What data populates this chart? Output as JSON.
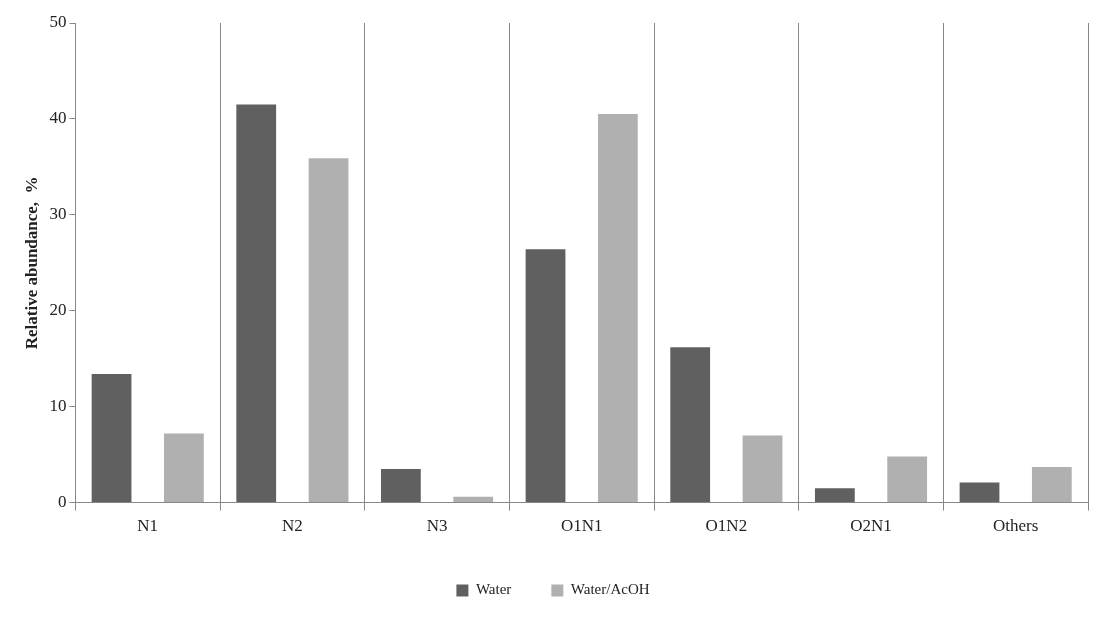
{
  "chart_data": {
    "type": "bar",
    "ylabel": "Relative abundance,  %",
    "categories": [
      "N1",
      "N2",
      "N3",
      "O1N1",
      "O1N2",
      "O2N1",
      "Others"
    ],
    "series": [
      {
        "name": "Water",
        "color": "#606060",
        "values": [
          13.4,
          41.5,
          3.5,
          26.4,
          16.2,
          1.5,
          2.1
        ]
      },
      {
        "name": "Water/AcOH",
        "color": "#b0b0b0",
        "values": [
          7.2,
          35.9,
          0.6,
          40.5,
          7.0,
          4.8,
          3.7
        ]
      }
    ],
    "ylim": [
      0,
      50
    ],
    "yticks": [
      0,
      10,
      20,
      30,
      40,
      50
    ],
    "grid": "x",
    "legend": "bottom"
  }
}
